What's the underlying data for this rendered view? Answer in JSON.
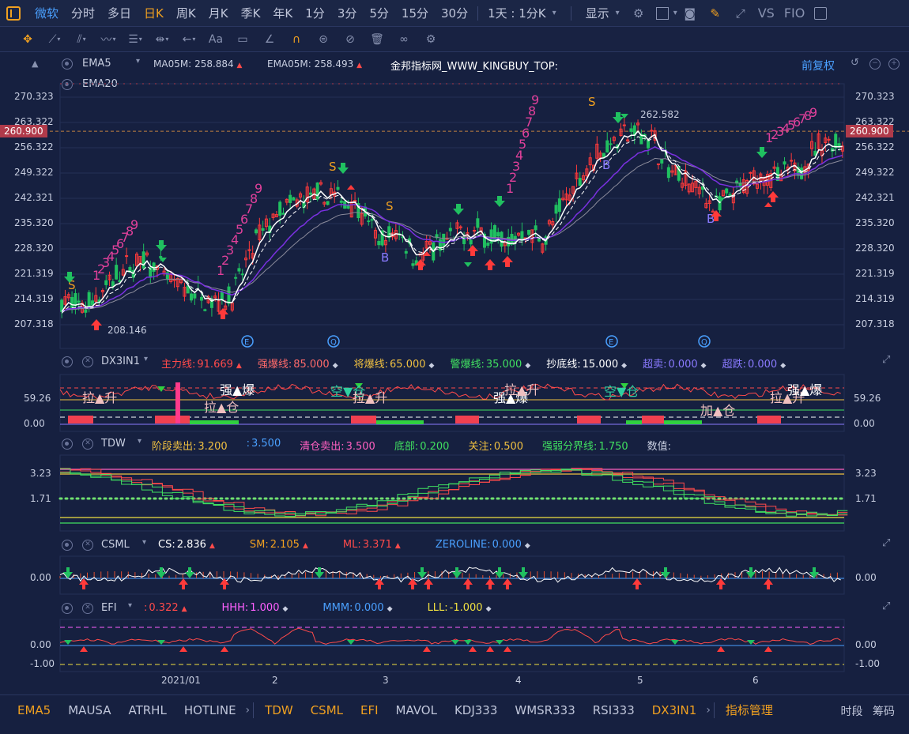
{
  "topbar": {
    "periods": [
      {
        "label": "微软",
        "state": "source"
      },
      {
        "label": "分时",
        "state": ""
      },
      {
        "label": "多日",
        "state": ""
      },
      {
        "label": "日K",
        "state": "active"
      },
      {
        "label": "周K",
        "state": ""
      },
      {
        "label": "月K",
        "state": ""
      },
      {
        "label": "季K",
        "state": ""
      },
      {
        "label": "年K",
        "state": ""
      },
      {
        "label": "1分",
        "state": ""
      },
      {
        "label": "3分",
        "state": ""
      },
      {
        "label": "5分",
        "state": ""
      },
      {
        "label": "15分",
        "state": ""
      },
      {
        "label": "30分",
        "state": ""
      }
    ],
    "interval_select": "1天 : 1分K",
    "display_menu": "显示",
    "right_labels": [
      "VS",
      "FIO"
    ]
  },
  "main": {
    "ema5_label": "EMA5",
    "ma05m_label": "MA05M:",
    "ma05m_value": "258.884",
    "ema05m_label": "EMA05M:",
    "ema05m_value": "258.493",
    "watermark": "金邦指标网_WWW_KINGBUY_TOP:",
    "adjust": "前复权",
    "ema20_label": "EMA20",
    "y_ticks": [
      "270.323",
      "263.322",
      "256.322",
      "249.322",
      "242.321",
      "235.320",
      "228.320",
      "221.319",
      "214.319",
      "207.318"
    ],
    "last_price": "260.900",
    "high_mark": "262.582",
    "low_mark": "208.146"
  },
  "dx3in1": {
    "name": "DX3IN1",
    "items": [
      {
        "label": "主力线:",
        "value": "91.669",
        "color": "#ff4a4a",
        "mark": "▲"
      },
      {
        "label": "强爆线:",
        "value": "85.000",
        "color": "#ff6a6a",
        "mark": "◆"
      },
      {
        "label": "将爆线:",
        "value": "65.000",
        "color": "#f0c040",
        "mark": "◆"
      },
      {
        "label": "警爆线:",
        "value": "35.000",
        "color": "#40e060",
        "mark": "◆"
      },
      {
        "label": "抄底线:",
        "value": "15.000",
        "color": "#ffffff",
        "mark": "◆"
      },
      {
        "label": "超卖:",
        "value": "0.000",
        "color": "#8a7aff",
        "mark": "◆"
      },
      {
        "label": "超跌:",
        "value": "0.000",
        "color": "#8a7aff",
        "mark": "◆"
      }
    ],
    "y_ticks": [
      "59.26",
      "0.00"
    ],
    "annotations": [
      {
        "text": "拉▲升",
        "color": "#f0c0c0"
      },
      {
        "text": "拉▲仓",
        "color": "#f0c0c0"
      },
      {
        "text": "强▲爆",
        "color": "#ffffff"
      },
      {
        "text": "空▼仓",
        "color": "#30d0a0"
      },
      {
        "text": "拉▲升",
        "color": "#f0c0c0"
      },
      {
        "text": "强▲爆",
        "color": "#ffffff"
      },
      {
        "text": "拉▲升",
        "color": "#f0c0c0"
      },
      {
        "text": "空▼仓",
        "color": "#30d0a0"
      },
      {
        "text": "加▲仓",
        "color": "#f0c0c0"
      },
      {
        "text": "拉▲升",
        "color": "#f0c0c0"
      },
      {
        "text": "强▲爆",
        "color": "#ffffff"
      }
    ]
  },
  "tdw": {
    "name": "TDW",
    "items": [
      {
        "label": "阶段卖出:",
        "value": "3.200",
        "color": "#f0c040"
      },
      {
        "label": ":",
        "value": "3.500",
        "color": "#4aa0ff"
      },
      {
        "label": "清仓卖出:",
        "value": "3.500",
        "color": "#ff60c0"
      },
      {
        "label": "底部:",
        "value": "0.200",
        "color": "#40e060"
      },
      {
        "label": "关注:",
        "value": "0.500",
        "color": "#f0c040"
      },
      {
        "label": "强弱分界线:",
        "value": "1.750",
        "color": "#40e060"
      },
      {
        "label": "数值:",
        "value": "",
        "color": "#c8cee0"
      }
    ],
    "y_ticks": [
      "3.23",
      "1.71"
    ]
  },
  "csml": {
    "name": "CSML",
    "items": [
      {
        "label": "CS:",
        "value": "2.836",
        "color": "#ffffff",
        "mark": "▲"
      },
      {
        "label": "SM:",
        "value": "2.105",
        "color": "#f0a020",
        "mark": "▲"
      },
      {
        "label": "ML:",
        "value": "3.371",
        "color": "#ff4a4a",
        "mark": "▲"
      },
      {
        "label": "ZEROLINE:",
        "value": "0.000",
        "color": "#4aa0ff",
        "mark": "◆"
      }
    ],
    "y_ticks": [
      "0.00"
    ]
  },
  "efi": {
    "name": "EFI",
    "items": [
      {
        "label": ":",
        "value": "0.322",
        "color": "#ff4a4a",
        "mark": "▲"
      },
      {
        "label": "HHH:",
        "value": "1.000",
        "color": "#ff60ff",
        "mark": "◆"
      },
      {
        "label": "MMM:",
        "value": "0.000",
        "color": "#4aa0ff",
        "mark": "◆"
      },
      {
        "label": "LLL:",
        "value": "-1.000",
        "color": "#f0e040",
        "mark": "◆"
      }
    ],
    "y_ticks": [
      "0.00",
      "-1.00"
    ]
  },
  "xaxis": [
    "2021/01",
    "2",
    "3",
    "4",
    "5",
    "6"
  ],
  "bottom_tabs": [
    {
      "label": "EMA5",
      "color": "orange"
    },
    {
      "label": "MAUSA",
      "color": ""
    },
    {
      "label": "ATRHL",
      "color": ""
    },
    {
      "label": "HOTLINE",
      "color": ""
    },
    {
      "label": "TDW",
      "color": "orange"
    },
    {
      "label": "CSML",
      "color": "orange"
    },
    {
      "label": "EFI",
      "color": "orange"
    },
    {
      "label": "MAVOL",
      "color": ""
    },
    {
      "label": "KDJ333",
      "color": ""
    },
    {
      "label": "WMSR333",
      "color": ""
    },
    {
      "label": "RSI333",
      "color": ""
    },
    {
      "label": "DX3IN1",
      "color": "orange"
    },
    {
      "label": "指标管理",
      "color": "orange"
    }
  ],
  "bottom_right": [
    "时段",
    "筹码"
  ]
}
